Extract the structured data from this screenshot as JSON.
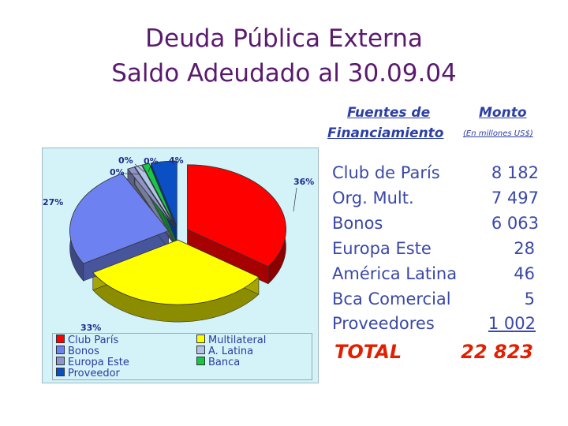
{
  "title_line1": "Deuda Pública Externa",
  "title_line2": "Saldo Adeudado al 30.09.04",
  "table": {
    "header_source_1": "Fuentes de",
    "header_source_2": "Financiamiento",
    "header_amount": "Monto",
    "header_amount_unit": "(En millones US$)",
    "rows": [
      {
        "name": "Club de París",
        "value": "8 182"
      },
      {
        "name": "Org. Mult.",
        "value": "7 497"
      },
      {
        "name": "Bonos",
        "value": "6 063"
      },
      {
        "name": "Europa Este",
        "value": "28"
      },
      {
        "name": "América Latina",
        "value": "46"
      },
      {
        "name": "Bca Comercial",
        "value": "5"
      },
      {
        "name": "Proveedores",
        "value": "1 002"
      }
    ],
    "total_label": "TOTAL",
    "total_value": "22 823"
  },
  "chart_data": {
    "type": "pie",
    "title": "",
    "categories": [
      "Club París",
      "Multilateral",
      "Bonos",
      "A. Latina",
      "Europa Este",
      "Banca",
      "Proveedor"
    ],
    "values": [
      8182,
      7497,
      6063,
      46,
      28,
      5,
      1002
    ],
    "percent_labels": [
      "36%",
      "33%",
      "27%",
      "0%",
      "0%",
      "0%",
      "4%"
    ],
    "colors": [
      "#ff0000",
      "#ffff00",
      "#6d82f0",
      "#b3c3e6",
      "#8f94cc",
      "#17c844",
      "#0a4fc4"
    ],
    "exploded": true,
    "three_d": true,
    "legend": {
      "placement": "bottom",
      "entries": [
        "Club París",
        "Multilateral",
        "Bonos",
        "A. Latina",
        "Europa Este",
        "Banca",
        "Proveedor"
      ]
    },
    "background_color": "#d3f3f8"
  }
}
